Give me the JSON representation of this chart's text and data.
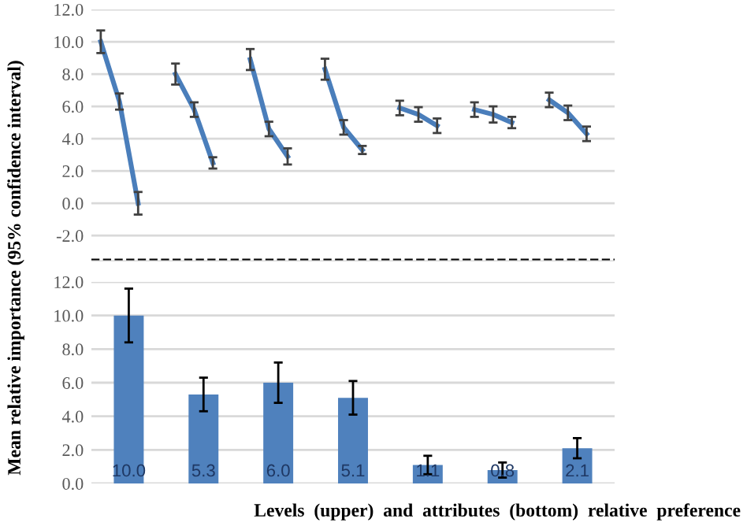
{
  "chart_data": [
    {
      "type": "line",
      "categories": [
        null,
        null,
        null,
        null,
        null,
        null,
        null,
        null,
        null,
        null,
        null,
        null,
        null,
        null,
        null,
        null,
        null,
        null,
        null,
        null,
        null,
        null,
        null,
        null,
        null,
        null,
        null,
        null
      ],
      "series": [
        {
          "color": "#4a7ebb",
          "values": [
            10.0,
            6.3,
            0.0,
            null,
            8.0,
            5.8,
            2.5,
            null,
            8.9,
            4.6,
            2.9,
            null,
            8.3,
            4.7,
            3.3,
            null,
            5.9,
            5.5,
            4.8,
            null,
            5.8,
            5.5,
            5.0,
            null,
            6.4,
            5.6,
            4.3,
            null
          ],
          "errors": [
            0.7,
            0.5,
            0.7,
            null,
            0.65,
            0.45,
            0.35,
            null,
            0.65,
            0.45,
            0.5,
            null,
            0.65,
            0.45,
            0.25,
            null,
            0.45,
            0.45,
            0.45,
            null,
            0.45,
            0.5,
            0.35,
            null,
            0.45,
            0.45,
            0.45,
            null
          ]
        }
      ],
      "ylim": [
        -3.6,
        12.0
      ],
      "yticks": [
        {
          "value": -3.6,
          "label": null
        },
        {
          "value": -2.0,
          "label": "-2.0"
        },
        {
          "value": 0.0,
          "label": "0.0"
        },
        {
          "value": 2.0,
          "label": "2.0"
        },
        {
          "value": 4.0,
          "label": "4.0"
        },
        {
          "value": 6.0,
          "label": "6.0"
        },
        {
          "value": 8.0,
          "label": "8.0"
        },
        {
          "value": 10.0,
          "label": "10.0"
        },
        {
          "value": 12.0,
          "label": "12.0"
        }
      ],
      "ref_lines": [
        {
          "axis": "y",
          "value": -3.5,
          "color": "#000000",
          "line_style": "dashed"
        }
      ],
      "grid": "y",
      "marker": "none",
      "line_style": "solid",
      "tick_labels": "y"
    },
    {
      "type": "bar",
      "categories": [
        null,
        null,
        null,
        null,
        null,
        null,
        null
      ],
      "values": [
        10.0,
        5.3,
        6.0,
        5.1,
        1.1,
        0.8,
        2.1
      ],
      "color": "#4f81bd",
      "errors": [
        1.6,
        1.0,
        1.2,
        1.0,
        0.55,
        0.45,
        0.6
      ],
      "value_labels": [
        "10.0",
        "5.3",
        "6.0",
        "5.1",
        "1.1",
        "0.8",
        "2.1"
      ],
      "ylim": [
        0.0,
        12.0
      ],
      "yticks": [
        {
          "value": 0.0,
          "label": "0.0"
        },
        {
          "value": 2.0,
          "label": "2.0"
        },
        {
          "value": 4.0,
          "label": "4.0"
        },
        {
          "value": 6.0,
          "label": "6.0"
        },
        {
          "value": 8.0,
          "label": "8.0"
        },
        {
          "value": 10.0,
          "label": "10.0"
        },
        {
          "value": 12.0,
          "label": "12.0"
        }
      ],
      "ylabel": "Mean relative importance (95% confidence interval)",
      "xlabel": "Levels  (upper)  and  attributes  (bottom)  relative  preference",
      "grid": "y",
      "tick_labels": "y"
    }
  ]
}
